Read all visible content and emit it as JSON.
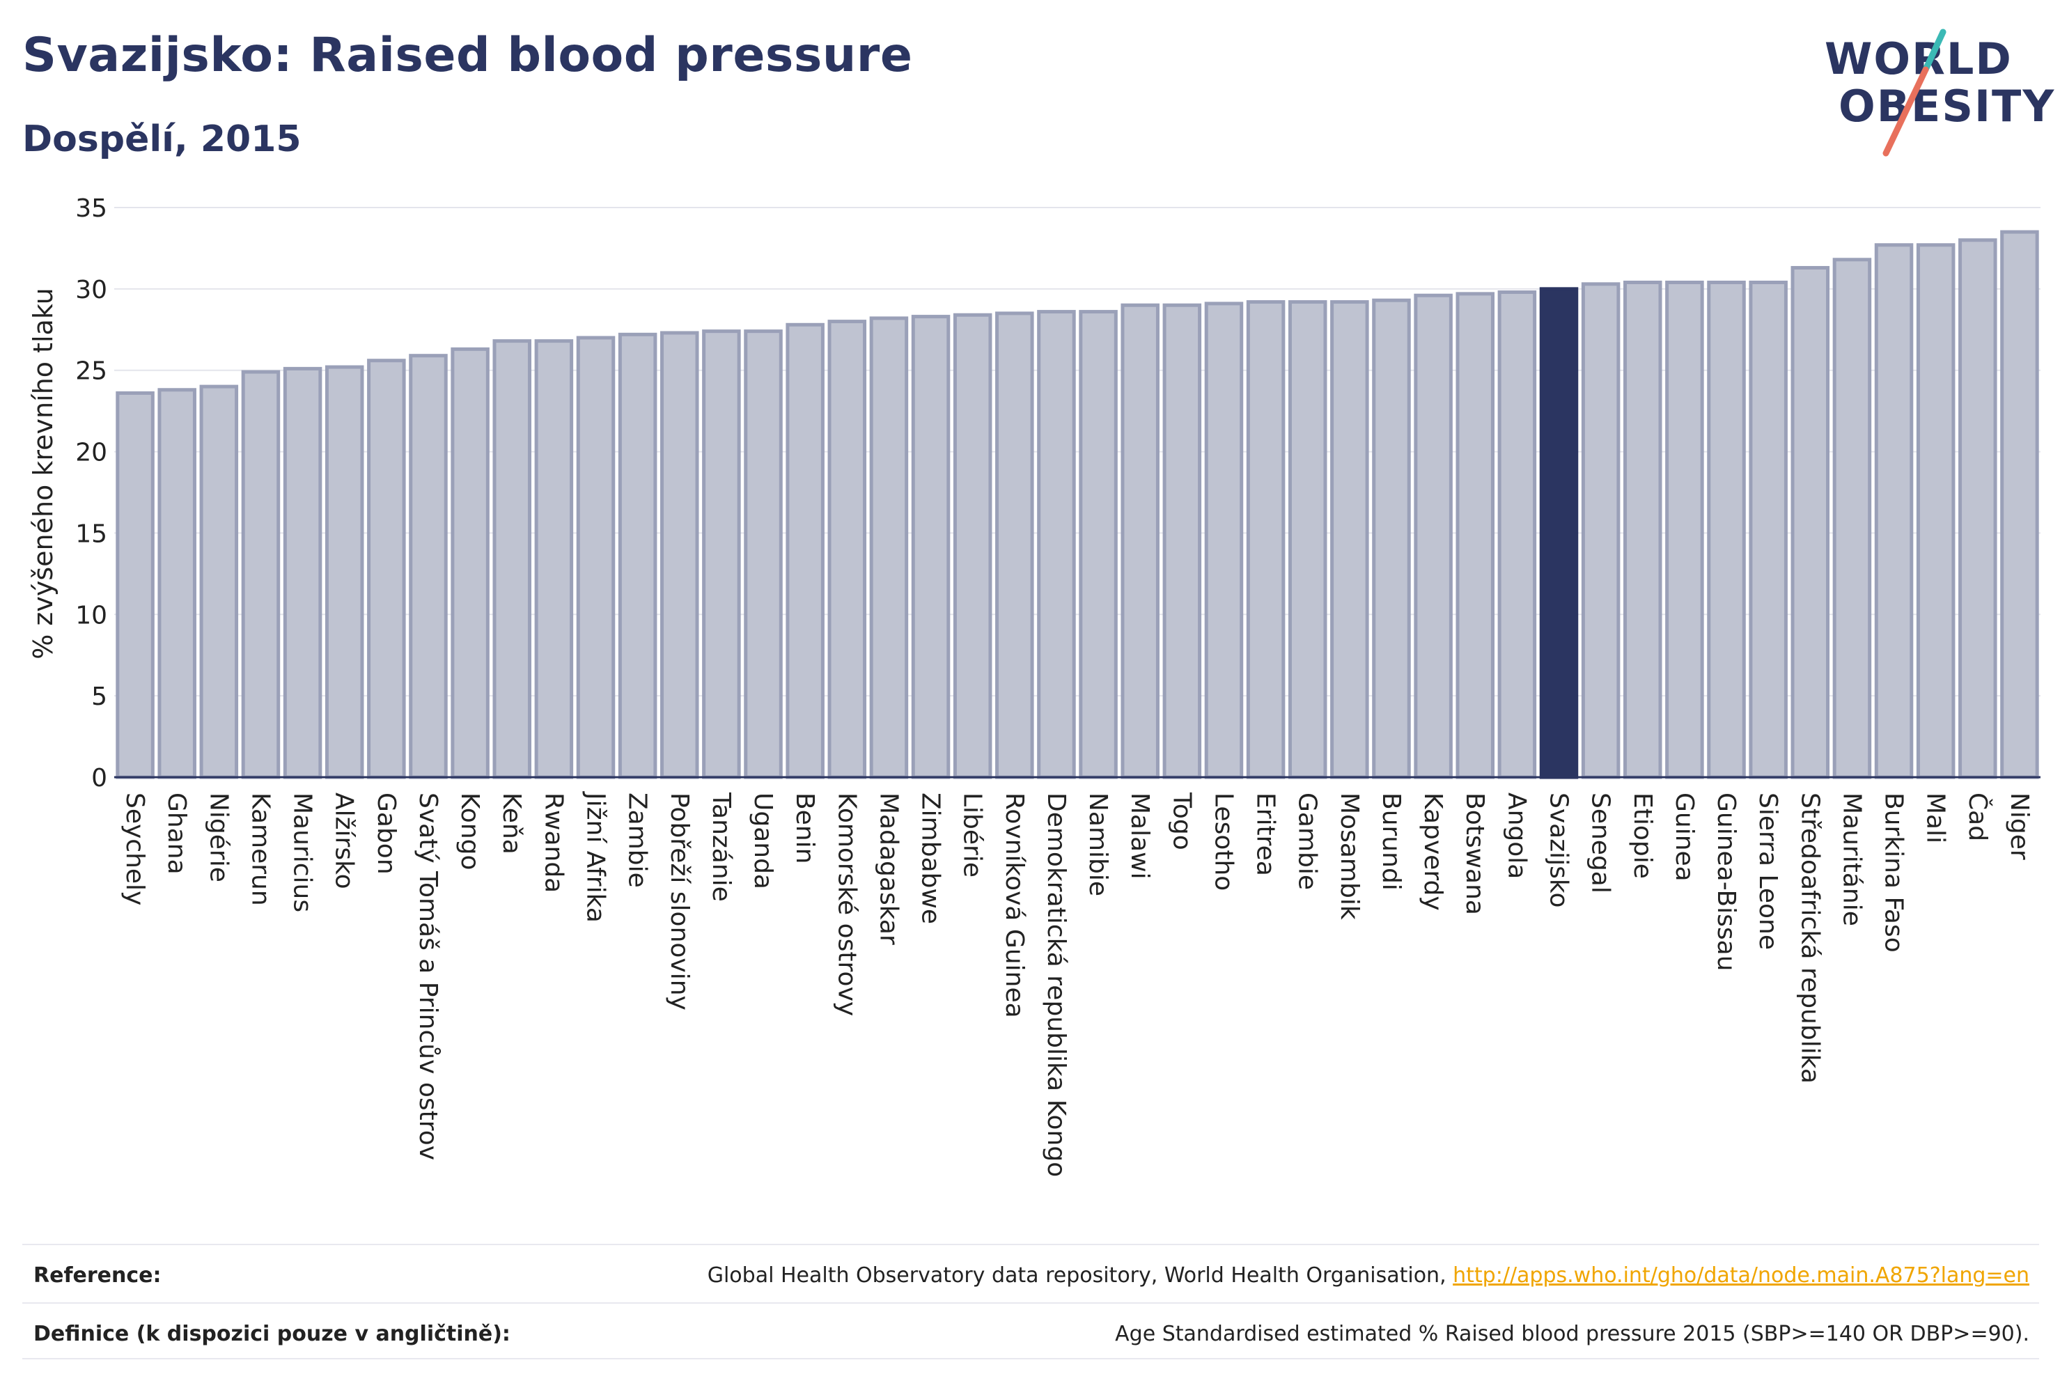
{
  "header": {
    "title": "Svazijsko: Raised blood pressure",
    "subtitle": "Dospělí, 2015",
    "logo_line1": "WORLD",
    "logo_line2": "OBESITY"
  },
  "colors": {
    "bar": "#bfc3d1",
    "bar_border": "#9aa0b8",
    "highlight": "#2b3561",
    "title": "#2b3561",
    "logo_teal": "#3bb9b5",
    "logo_coral": "#e8705c",
    "link": "#f0a500"
  },
  "chart_data": {
    "type": "bar",
    "ylabel": "% zvýšeného krevního tlaku",
    "xlabel": "",
    "ylim": [
      0,
      35
    ],
    "yticks": [
      0,
      5,
      10,
      15,
      20,
      25,
      30,
      35
    ],
    "grid": true,
    "highlight": "Svazijsko",
    "categories": [
      "Seychely",
      "Ghana",
      "Nigérie",
      "Kamerun",
      "Mauricius",
      "Alžírsko",
      "Gabon",
      "Svatý Tomáš a Princův ostrov",
      "Kongo",
      "Keňa",
      "Rwanda",
      "Jižní Afrika",
      "Zambie",
      "Pobřeží slonoviny",
      "Tanzánie",
      "Uganda",
      "Benin",
      "Komorské ostrovy",
      "Madagaskar",
      "Zimbabwe",
      "Libérie",
      "Rovníková Guinea",
      "Demokratická republika Kongo",
      "Namibie",
      "Malawi",
      "Togo",
      "Lesotho",
      "Eritrea",
      "Gambie",
      "Mosambik",
      "Burundi",
      "Kapverdy",
      "Botswana",
      "Angola",
      "Svazijsko",
      "Senegal",
      "Etiopie",
      "Guinea",
      "Guinea-Bissau",
      "Sierra Leone",
      "Středoafrická republika",
      "Mauritánie",
      "Burkina Faso",
      "Mali",
      "Čad",
      "Niger"
    ],
    "values": [
      23.6,
      23.8,
      24.0,
      24.9,
      25.1,
      25.2,
      25.6,
      25.9,
      26.3,
      26.8,
      26.8,
      27.0,
      27.2,
      27.3,
      27.4,
      27.4,
      27.8,
      28.0,
      28.2,
      28.3,
      28.4,
      28.5,
      28.6,
      28.6,
      29.0,
      29.0,
      29.1,
      29.2,
      29.2,
      29.2,
      29.3,
      29.6,
      29.7,
      29.8,
      30.0,
      30.3,
      30.4,
      30.4,
      30.4,
      30.4,
      31.3,
      31.8,
      32.7,
      32.7,
      33.0,
      33.5
    ]
  },
  "footer": {
    "reference_label": "Reference:",
    "reference_text": "Global Health Observatory data repository, World Health Organisation, ",
    "reference_link": "http://apps.who.int/gho/data/node.main.A875?lang=en",
    "definition_label": "Definice (k dispozici pouze v angličtině):",
    "definition_text": "Age Standardised estimated % Raised blood pressure 2015 (SBP>=140 OR DBP>=90)."
  }
}
